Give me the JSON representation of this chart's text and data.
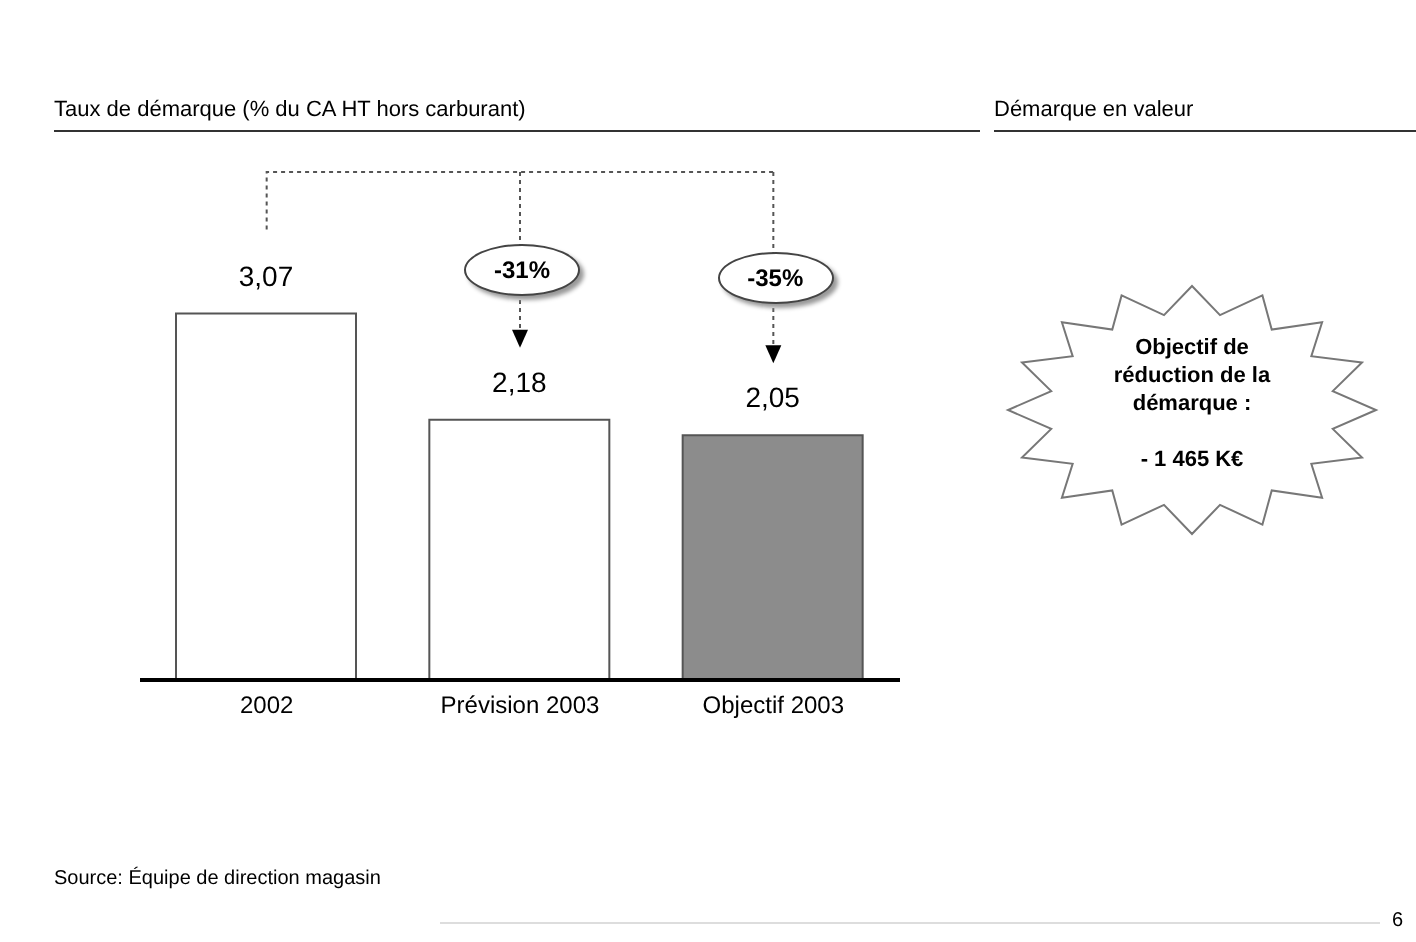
{
  "chart_data": {
    "type": "bar",
    "title": "Taux de démarque (% du CA HT hors carburant)",
    "categories": [
      "2002",
      "Prévision 2003",
      "Objectif 2003"
    ],
    "values": [
      3.07,
      2.18,
      2.05
    ],
    "colors": [
      "#ffffff",
      "#ffffff",
      "#8c8c8c"
    ],
    "value_labels": [
      "3,07",
      "2,18",
      "2,05"
    ],
    "annotations": [
      "-31%",
      "-35%",
      "Démarque en valeur",
      "Objectif de\nréduction de la\ndémarque :\n\n- 1 465 K€",
      "Source: Équipe de direction magasin",
      "6"
    ]
  }
}
